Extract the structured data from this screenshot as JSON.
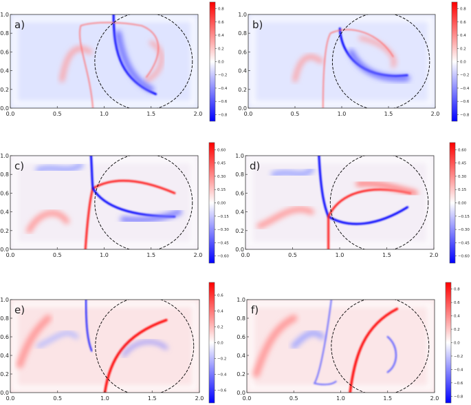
{
  "chart_data": [
    {
      "type": "heatmap",
      "panel_label": "a)",
      "xlim": [
        0,
        2
      ],
      "ylim": [
        0,
        1
      ],
      "xticks": [
        "0.0",
        "0.5",
        "1.0",
        "1.5",
        "2.0"
      ],
      "yticks": [
        "0.0",
        "0.2",
        "0.4",
        "0.6",
        "0.8",
        "1.0"
      ],
      "colormap": "bwr",
      "clim": [
        -0.9,
        0.9
      ],
      "colorbar_ticks": [
        "0.8",
        "0.6",
        "0.4",
        "0.2",
        "0.0",
        "−0.2",
        "−0.4",
        "−0.6",
        "−0.8"
      ],
      "overlay": "dashed circle arc",
      "grid": false
    },
    {
      "type": "heatmap",
      "panel_label": "b)",
      "xlim": [
        0,
        2
      ],
      "ylim": [
        0,
        1
      ],
      "xticks": [
        "0.0",
        "0.5",
        "1.0",
        "1.5",
        "2.0"
      ],
      "yticks": [
        "0.0",
        "0.2",
        "0.4",
        "0.6",
        "0.8",
        "1.0"
      ],
      "colormap": "bwr",
      "clim": [
        -0.9,
        0.9
      ],
      "colorbar_ticks": [
        "0.8",
        "0.6",
        "0.4",
        "0.2",
        "0.0",
        "−0.2",
        "−0.4",
        "−0.6",
        "−0.8"
      ],
      "overlay": "dashed circle arc",
      "grid": false
    },
    {
      "type": "heatmap",
      "panel_label": "c)",
      "xlim": [
        0,
        2
      ],
      "ylim": [
        0,
        1
      ],
      "xticks": [
        "0.0",
        "0.5",
        "1.0",
        "1.5",
        "2.0"
      ],
      "yticks": [
        "0.0",
        "0.2",
        "0.4",
        "0.6",
        "0.8",
        "1.0"
      ],
      "colormap": "bwr",
      "clim": [
        -0.68,
        0.68
      ],
      "colorbar_ticks": [
        "0.60",
        "0.45",
        "0.30",
        "0.15",
        "0.00",
        "−0.15",
        "−0.30",
        "−0.45",
        "−0.60"
      ],
      "overlay": "dashed circle arc",
      "grid": false
    },
    {
      "type": "heatmap",
      "panel_label": "d)",
      "xlim": [
        0,
        2
      ],
      "ylim": [
        0,
        1
      ],
      "xticks": [
        "0.0",
        "0.5",
        "1.0",
        "1.5",
        "2.0"
      ],
      "yticks": [
        "0.0",
        "0.2",
        "0.4",
        "0.6",
        "0.8",
        "1.0"
      ],
      "colormap": "bwr",
      "clim": [
        -0.68,
        0.68
      ],
      "colorbar_ticks": [
        "0.60",
        "0.45",
        "0.30",
        "0.15",
        "0.00",
        "−0.15",
        "−0.30",
        "−0.45",
        "−0.60"
      ],
      "overlay": "dashed circle arc",
      "grid": false
    },
    {
      "type": "heatmap",
      "panel_label": "e)",
      "xlim": [
        0,
        2
      ],
      "ylim": [
        0,
        1
      ],
      "xticks": [
        "0.0",
        "0.5",
        "1.0",
        "1.5",
        "2.0"
      ],
      "yticks": [
        "0.0",
        "0.2",
        "0.4",
        "0.6",
        "0.8",
        "1.0"
      ],
      "colormap": "bwr",
      "clim": [
        -0.76,
        0.76
      ],
      "colorbar_ticks": [
        "0.6",
        "0.4",
        "0.2",
        "0.0",
        "−0.2",
        "−0.4",
        "−0.6"
      ],
      "overlay": "dashed circle arc",
      "grid": false
    },
    {
      "type": "heatmap",
      "panel_label": "f)",
      "xlim": [
        0,
        2
      ],
      "ylim": [
        0,
        1
      ],
      "xticks": [
        "0.0",
        "0.5",
        "1.0",
        "1.5",
        "2.0"
      ],
      "yticks": [
        "0.0",
        "0.2",
        "0.4",
        "0.6",
        "0.8",
        "1.0"
      ],
      "colormap": "bwr",
      "clim": [
        -0.9,
        0.9
      ],
      "colorbar_ticks": [
        "0.8",
        "0.6",
        "0.4",
        "0.2",
        "0.0",
        "−0.2",
        "−0.4",
        "−0.6",
        "−0.8"
      ],
      "overlay": "dashed circle arc",
      "grid": false
    }
  ],
  "colors": {
    "positive": "#ff0000",
    "zero": "#ffffff",
    "negative": "#0000ff",
    "overlay": "#000000"
  }
}
